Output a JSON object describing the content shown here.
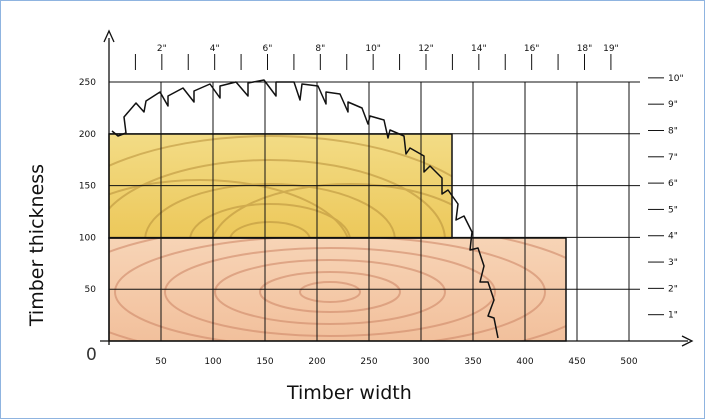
{
  "y_axis_title": "Timber thickness",
  "x_axis_title": "Timber width",
  "origin_label": "0",
  "x_mm_ticks": [
    "50",
    "100",
    "150",
    "200",
    "250",
    "300",
    "350",
    "400",
    "450",
    "500"
  ],
  "y_mm_ticks": [
    "50",
    "100",
    "150",
    "200",
    "250"
  ],
  "x_inch_ticks": [
    "2\"",
    "4\"",
    "6\"",
    "8\"",
    "10\"",
    "12\"",
    "14\"",
    "16\"",
    "18\"",
    "19\""
  ],
  "y_inch_ticks": [
    "1\"",
    "2\"",
    "3\"",
    "4\"",
    "5\"",
    "6\"",
    "7\"",
    "8\"",
    "9\"",
    "10\""
  ],
  "colors": {
    "upper_timber": "#f0d36a",
    "lower_timber": "#f5c8a8",
    "grid": "#111111",
    "frame": "#8fb4e0"
  }
}
